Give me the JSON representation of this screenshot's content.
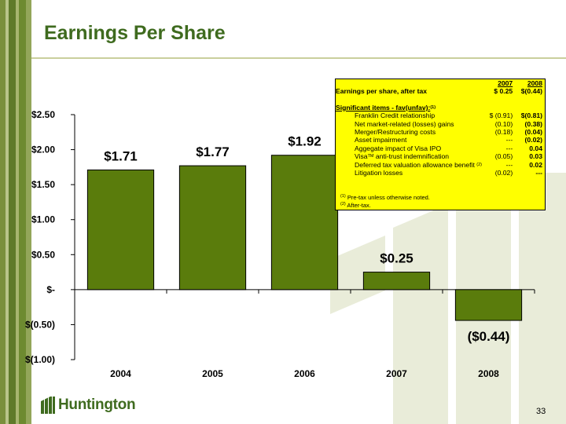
{
  "title": "Earnings Per Share",
  "page_number": "33",
  "logo_text": "Huntington",
  "colors": {
    "bar": "#5a7c0c",
    "title": "#3f6b1f"
  },
  "chart_data": {
    "type": "bar",
    "categories": [
      "2004",
      "2005",
      "2006",
      "2007",
      "2008"
    ],
    "values": [
      1.71,
      1.77,
      1.92,
      0.25,
      -0.44
    ],
    "value_labels": [
      "$1.71",
      "$1.77",
      "$1.92",
      "$0.25",
      "($0.44)"
    ],
    "ylim": [
      -1.0,
      2.5
    ],
    "yticks": [
      {
        "v": 2.5,
        "label": "$2.50"
      },
      {
        "v": 2.0,
        "label": "$2.00"
      },
      {
        "v": 1.5,
        "label": "$1.50"
      },
      {
        "v": 1.0,
        "label": "$1.00"
      },
      {
        "v": 0.5,
        "label": "$0.50"
      },
      {
        "v": 0.0,
        "label": "$-"
      },
      {
        "v": -0.5,
        "label": "$(0.50)"
      },
      {
        "v": -1.0,
        "label": "$(1.00)"
      }
    ],
    "title": "",
    "xlabel": "",
    "ylabel": "",
    "grid": false
  },
  "table": {
    "headers": [
      "",
      "2007",
      "2008"
    ],
    "eps_row": {
      "label": "Earnings per share, after tax",
      "v2007": "$ 0.25",
      "v2008": "$(0.44)"
    },
    "significant_label": "Significant items - fav(unfav):",
    "significant_sup": "(1)",
    "items": [
      {
        "label": "Franklin Credit relationship",
        "sup": "",
        "v2007": "$ (0.91)",
        "v2008": "$(0.81)"
      },
      {
        "label": "Net market-related (losses) gains",
        "sup": "",
        "v2007": "(0.10)",
        "v2008": "(0.38)"
      },
      {
        "label": "Merger/Restructuring costs",
        "sup": "",
        "v2007": "(0.18)",
        "v2008": "(0.04)"
      },
      {
        "label": "Asset impairment",
        "sup": "",
        "v2007": "---",
        "v2008": "(0.02)"
      },
      {
        "label": "Aggegate impact of Visa IPO",
        "sup": "",
        "v2007": "---",
        "v2008": "0.04"
      },
      {
        "label": "Visa",
        "tm": "TM",
        "label_rest": " anti-trust indemnification",
        "sup": "",
        "v2007": "(0.05)",
        "v2008": "0.03"
      },
      {
        "label": "Deferred tax valuation allowance benefit",
        "sup": "(2)",
        "v2007": "---",
        "v2008": "0.02"
      },
      {
        "label": "Litigation losses",
        "sup": "",
        "v2007": "(0.02)",
        "v2008": "---"
      }
    ],
    "footnotes": [
      {
        "mark": "(1)",
        "text": "Pre-tax unless otherwise noted."
      },
      {
        "mark": "(2)",
        "text": "After-tax."
      }
    ]
  }
}
